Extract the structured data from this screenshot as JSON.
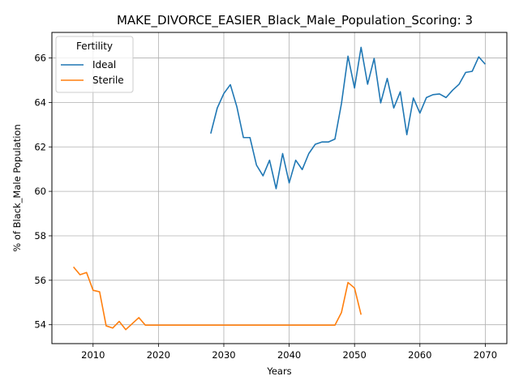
{
  "chart_data": {
    "type": "line",
    "title": "MAKE_DIVORCE_EASIER_Black_Male_Population_Scoring: 3",
    "xlabel": "Years",
    "ylabel": "% of Black_Male Population",
    "xlim": [
      2003.7,
      2073.3
    ],
    "ylim": [
      53.15,
      67.15
    ],
    "xticks": [
      2010,
      2020,
      2030,
      2040,
      2050,
      2060,
      2070
    ],
    "yticks": [
      54,
      56,
      58,
      60,
      62,
      64,
      66
    ],
    "grid": true,
    "legend": {
      "title": "Fertility",
      "placement": "upper left"
    },
    "series": [
      {
        "name": "Ideal",
        "color": "#1f77b4",
        "x": [
          2028,
          2029,
          2030,
          2031,
          2032,
          2033,
          2034,
          2035,
          2036,
          2037,
          2038,
          2039,
          2040,
          2041,
          2042,
          2043,
          2044,
          2045,
          2046,
          2047,
          2048,
          2049,
          2050,
          2051,
          2052,
          2053,
          2054,
          2055,
          2056,
          2057,
          2058,
          2059,
          2060,
          2061,
          2062,
          2063,
          2064,
          2065,
          2066,
          2067,
          2068,
          2069,
          2070
        ],
        "y": [
          62.6,
          63.75,
          64.4,
          64.8,
          63.8,
          62.42,
          62.42,
          61.18,
          60.7,
          61.4,
          60.12,
          61.7,
          60.38,
          61.4,
          60.98,
          61.7,
          62.12,
          62.22,
          62.22,
          62.35,
          63.95,
          66.08,
          64.65,
          66.48,
          64.82,
          65.98,
          63.98,
          65.08,
          63.75,
          64.48,
          62.55,
          64.2,
          63.52,
          64.22,
          64.35,
          64.38,
          64.22,
          64.55,
          64.82,
          65.35,
          65.4,
          66.05,
          65.72
        ]
      },
      {
        "name": "Sterile",
        "color": "#ff7f0e",
        "x": [
          2007,
          2008,
          2009,
          2010,
          2011,
          2012,
          2013,
          2014,
          2015,
          2016,
          2017,
          2018,
          2019,
          2020,
          2021,
          2022,
          2023,
          2024,
          2025,
          2026,
          2027,
          2028,
          2029,
          2030,
          2031,
          2032,
          2033,
          2034,
          2035,
          2036,
          2037,
          2038,
          2039,
          2040,
          2041,
          2042,
          2043,
          2044,
          2045,
          2046,
          2047,
          2048,
          2049,
          2050,
          2051
        ],
        "y": [
          56.6,
          56.25,
          56.35,
          55.55,
          55.48,
          53.95,
          53.85,
          54.15,
          53.78,
          54.05,
          54.32,
          53.98,
          53.98,
          53.98,
          53.98,
          53.98,
          53.98,
          53.98,
          53.98,
          53.98,
          53.98,
          53.98,
          53.98,
          53.98,
          53.98,
          53.98,
          53.98,
          53.98,
          53.98,
          53.98,
          53.98,
          53.98,
          53.98,
          53.98,
          53.98,
          53.98,
          53.98,
          53.98,
          53.98,
          53.98,
          53.98,
          54.55,
          55.9,
          55.65,
          54.45
        ]
      }
    ]
  }
}
